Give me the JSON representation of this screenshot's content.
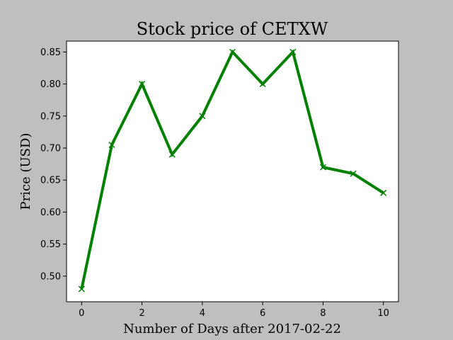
{
  "chart_data": {
    "type": "line",
    "title": "Stock price of CETXW",
    "xlabel": "Number of Days after 2017-02-22",
    "ylabel": "Price (USD)",
    "x": [
      0,
      1,
      2,
      3,
      4,
      5,
      6,
      7,
      8,
      9,
      10
    ],
    "series": [
      {
        "values": [
          0.48,
          0.705,
          0.8,
          0.69,
          0.75,
          0.85,
          0.8,
          0.85,
          0.67,
          0.66,
          0.63
        ],
        "color": "#008000",
        "marker": "x"
      }
    ],
    "xlim": [
      -0.5,
      10.5
    ],
    "ylim": [
      0.46,
      0.867
    ],
    "xticks": [
      0,
      2,
      4,
      6,
      8,
      10
    ],
    "xtick_labels": [
      "0",
      "2",
      "4",
      "6",
      "8",
      "10"
    ],
    "yticks": [
      0.5,
      0.55,
      0.6,
      0.65,
      0.7,
      0.75,
      0.8,
      0.85
    ],
    "ytick_labels": [
      "0.50",
      "0.55",
      "0.60",
      "0.65",
      "0.70",
      "0.75",
      "0.80",
      "0.85"
    ],
    "grid": false,
    "legend": "none",
    "background_color": "#bfbfbf",
    "plot_background_color": "#ffffff"
  }
}
